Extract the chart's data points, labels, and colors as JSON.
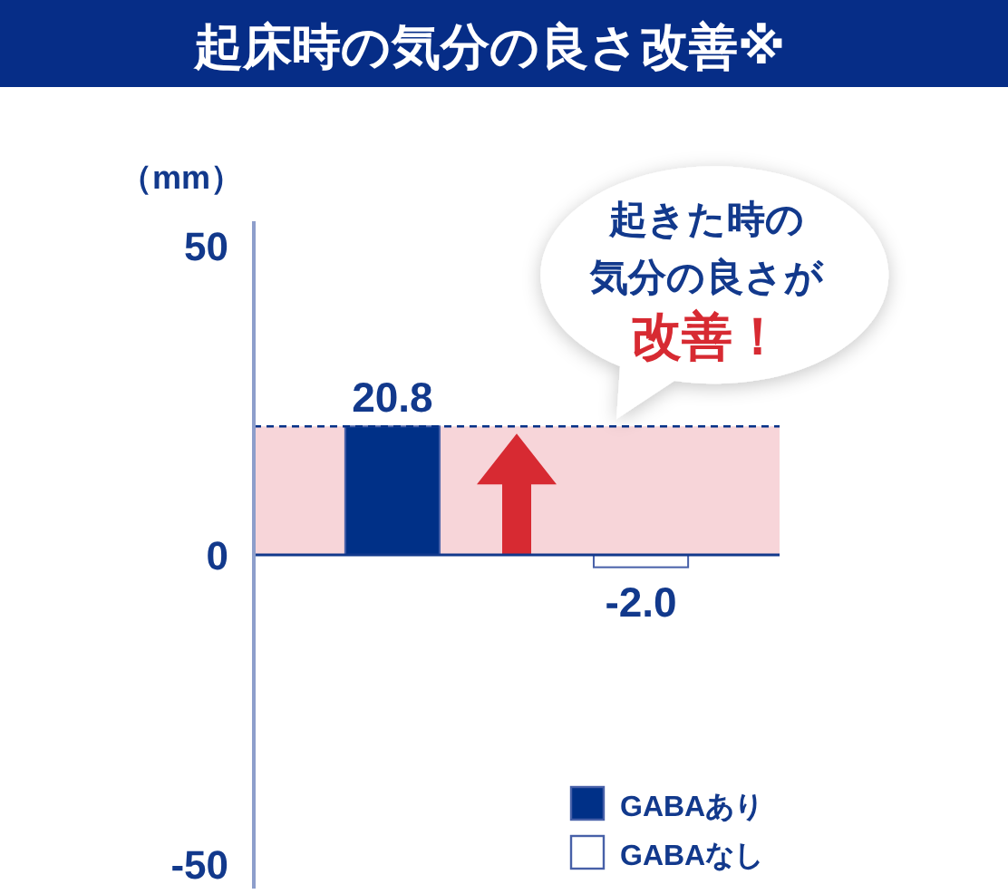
{
  "chart_data": {
    "type": "bar",
    "title": "起床時の気分の良さ改善※",
    "ylabel": "（mm）",
    "categories": [
      null,
      null
    ],
    "series": [
      {
        "name": "GABAあり",
        "color": "#003087",
        "values": [
          20.8,
          null
        ],
        "value_labels": [
          "20.8",
          null
        ]
      },
      {
        "name": "GABAなし",
        "color": "#ffffff",
        "values": [
          null,
          -2.0
        ],
        "value_labels": [
          null,
          "-2.0"
        ]
      }
    ],
    "ylim": [
      -54,
      54
    ],
    "yticks": [
      -50,
      0,
      50
    ],
    "legend": "bottom right",
    "bands": [
      {
        "axis": "y",
        "from": 0,
        "to": 20.8,
        "color": "#f7d5d9"
      }
    ],
    "ref_lines": [
      {
        "axis": "y",
        "value": 20.8,
        "color": "#003087",
        "line_style": "dashed"
      },
      {
        "axis": "y",
        "value": 0,
        "color": "#12398c",
        "line_style": "solid"
      }
    ],
    "annotations": [
      "起きた時の",
      "気分の良さが",
      "改善！"
    ]
  }
}
